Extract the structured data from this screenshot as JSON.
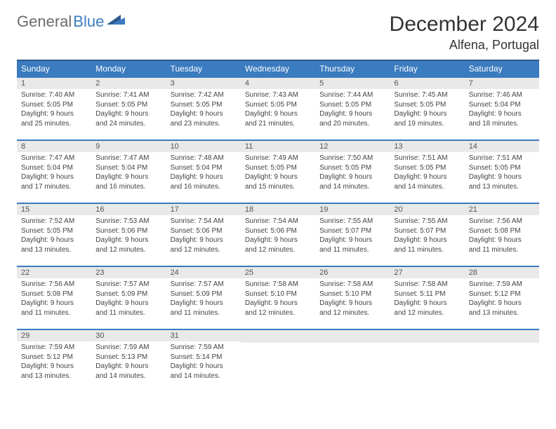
{
  "logo": {
    "general": "General",
    "blue": "Blue"
  },
  "title": {
    "month": "December 2024",
    "location": "Alfena, Portugal"
  },
  "colors": {
    "header_bg": "#3b7bbf",
    "header_border": "#2b5a8c",
    "row_border": "#3b7bbf",
    "daynum_bg": "#e9e9e9",
    "text": "#444444",
    "page_bg": "#ffffff"
  },
  "weekdays": [
    "Sunday",
    "Monday",
    "Tuesday",
    "Wednesday",
    "Thursday",
    "Friday",
    "Saturday"
  ],
  "labels": {
    "sunrise": "Sunrise:",
    "sunset": "Sunset:",
    "daylight": "Daylight:"
  },
  "weeks": [
    [
      {
        "day": 1,
        "sunrise": "7:40 AM",
        "sunset": "5:05 PM",
        "daylight": "9 hours and 25 minutes."
      },
      {
        "day": 2,
        "sunrise": "7:41 AM",
        "sunset": "5:05 PM",
        "daylight": "9 hours and 24 minutes."
      },
      {
        "day": 3,
        "sunrise": "7:42 AM",
        "sunset": "5:05 PM",
        "daylight": "9 hours and 23 minutes."
      },
      {
        "day": 4,
        "sunrise": "7:43 AM",
        "sunset": "5:05 PM",
        "daylight": "9 hours and 21 minutes."
      },
      {
        "day": 5,
        "sunrise": "7:44 AM",
        "sunset": "5:05 PM",
        "daylight": "9 hours and 20 minutes."
      },
      {
        "day": 6,
        "sunrise": "7:45 AM",
        "sunset": "5:05 PM",
        "daylight": "9 hours and 19 minutes."
      },
      {
        "day": 7,
        "sunrise": "7:46 AM",
        "sunset": "5:04 PM",
        "daylight": "9 hours and 18 minutes."
      }
    ],
    [
      {
        "day": 8,
        "sunrise": "7:47 AM",
        "sunset": "5:04 PM",
        "daylight": "9 hours and 17 minutes."
      },
      {
        "day": 9,
        "sunrise": "7:47 AM",
        "sunset": "5:04 PM",
        "daylight": "9 hours and 16 minutes."
      },
      {
        "day": 10,
        "sunrise": "7:48 AM",
        "sunset": "5:04 PM",
        "daylight": "9 hours and 16 minutes."
      },
      {
        "day": 11,
        "sunrise": "7:49 AM",
        "sunset": "5:05 PM",
        "daylight": "9 hours and 15 minutes."
      },
      {
        "day": 12,
        "sunrise": "7:50 AM",
        "sunset": "5:05 PM",
        "daylight": "9 hours and 14 minutes."
      },
      {
        "day": 13,
        "sunrise": "7:51 AM",
        "sunset": "5:05 PM",
        "daylight": "9 hours and 14 minutes."
      },
      {
        "day": 14,
        "sunrise": "7:51 AM",
        "sunset": "5:05 PM",
        "daylight": "9 hours and 13 minutes."
      }
    ],
    [
      {
        "day": 15,
        "sunrise": "7:52 AM",
        "sunset": "5:05 PM",
        "daylight": "9 hours and 13 minutes."
      },
      {
        "day": 16,
        "sunrise": "7:53 AM",
        "sunset": "5:06 PM",
        "daylight": "9 hours and 12 minutes."
      },
      {
        "day": 17,
        "sunrise": "7:54 AM",
        "sunset": "5:06 PM",
        "daylight": "9 hours and 12 minutes."
      },
      {
        "day": 18,
        "sunrise": "7:54 AM",
        "sunset": "5:06 PM",
        "daylight": "9 hours and 12 minutes."
      },
      {
        "day": 19,
        "sunrise": "7:55 AM",
        "sunset": "5:07 PM",
        "daylight": "9 hours and 11 minutes."
      },
      {
        "day": 20,
        "sunrise": "7:55 AM",
        "sunset": "5:07 PM",
        "daylight": "9 hours and 11 minutes."
      },
      {
        "day": 21,
        "sunrise": "7:56 AM",
        "sunset": "5:08 PM",
        "daylight": "9 hours and 11 minutes."
      }
    ],
    [
      {
        "day": 22,
        "sunrise": "7:56 AM",
        "sunset": "5:08 PM",
        "daylight": "9 hours and 11 minutes."
      },
      {
        "day": 23,
        "sunrise": "7:57 AM",
        "sunset": "5:09 PM",
        "daylight": "9 hours and 11 minutes."
      },
      {
        "day": 24,
        "sunrise": "7:57 AM",
        "sunset": "5:09 PM",
        "daylight": "9 hours and 11 minutes."
      },
      {
        "day": 25,
        "sunrise": "7:58 AM",
        "sunset": "5:10 PM",
        "daylight": "9 hours and 12 minutes."
      },
      {
        "day": 26,
        "sunrise": "7:58 AM",
        "sunset": "5:10 PM",
        "daylight": "9 hours and 12 minutes."
      },
      {
        "day": 27,
        "sunrise": "7:58 AM",
        "sunset": "5:11 PM",
        "daylight": "9 hours and 12 minutes."
      },
      {
        "day": 28,
        "sunrise": "7:59 AM",
        "sunset": "5:12 PM",
        "daylight": "9 hours and 13 minutes."
      }
    ],
    [
      {
        "day": 29,
        "sunrise": "7:59 AM",
        "sunset": "5:12 PM",
        "daylight": "9 hours and 13 minutes."
      },
      {
        "day": 30,
        "sunrise": "7:59 AM",
        "sunset": "5:13 PM",
        "daylight": "9 hours and 14 minutes."
      },
      {
        "day": 31,
        "sunrise": "7:59 AM",
        "sunset": "5:14 PM",
        "daylight": "9 hours and 14 minutes."
      },
      null,
      null,
      null,
      null
    ]
  ]
}
